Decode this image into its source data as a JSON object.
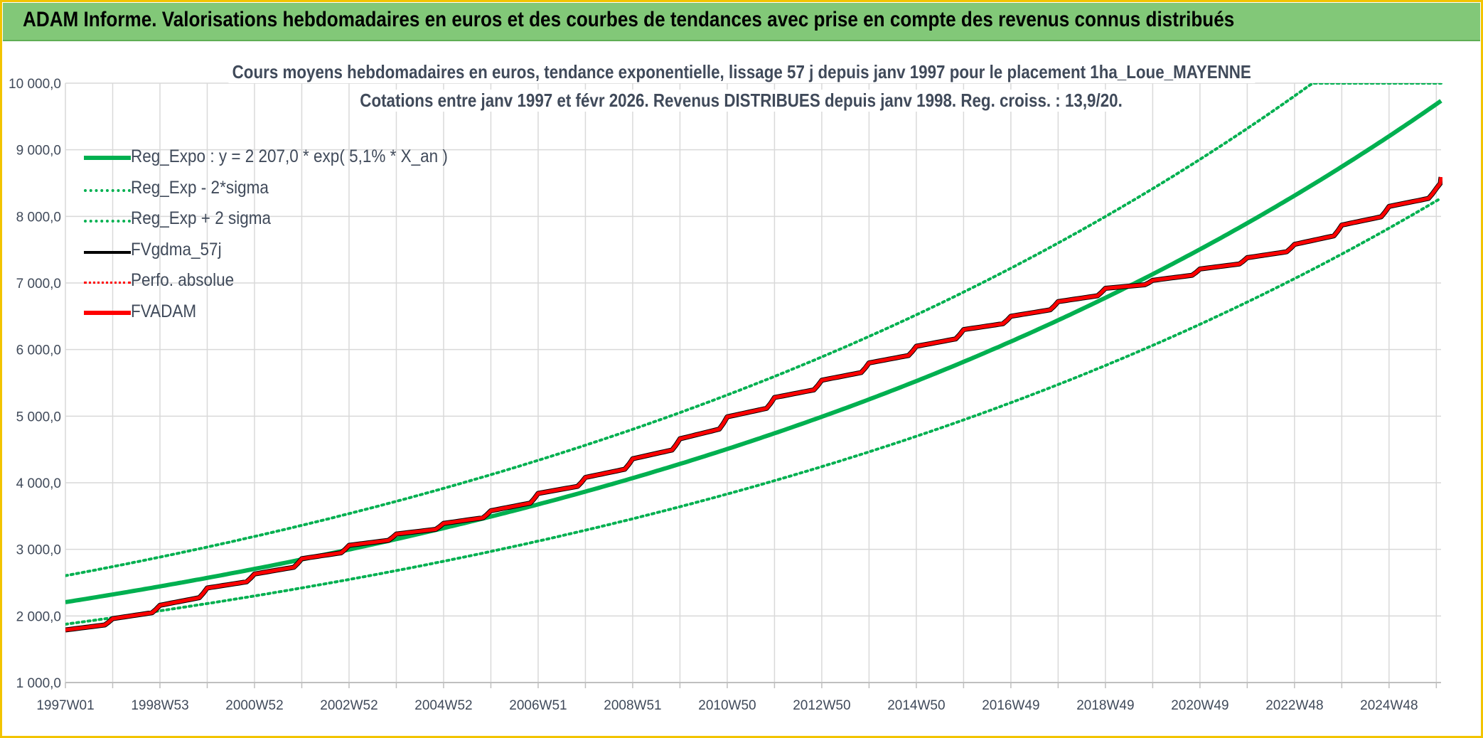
{
  "header": {
    "banner_title": "ADAM Informe. Valorisations hebdomadaires en euros et des courbes de tendances avec prise en compte des revenus connus distribués"
  },
  "chart_data": {
    "type": "line",
    "title": "Cours moyens hebdomadaires en euros, tendance exponentielle, lissage 57 j depuis janv 1997 pour le placement 1ha_Loue_MAYENNE",
    "subtitle": "Cotations entre janv 1997 et févr 2026. Revenus DISTRIBUES depuis janv 1998. Reg. croiss. : 13,9/20.",
    "xlabel": "",
    "ylabel": "",
    "x_range": [
      1997.0,
      2026.1
    ],
    "ylim": [
      1000,
      10000
    ],
    "y_ticks": [
      "1 000,0",
      "2 000,0",
      "3 000,0",
      "4 000,0",
      "5 000,0",
      "6 000,0",
      "7 000,0",
      "8 000,0",
      "9 000,0",
      "10 000,0"
    ],
    "x_ticks": [
      "1997W01",
      "1998W53",
      "2000W52",
      "2002W52",
      "2004W52",
      "2006W51",
      "2008W51",
      "2010W50",
      "2012W50",
      "2014W50",
      "2016W49",
      "2018W49",
      "2020W49",
      "2022W48",
      "2024W48"
    ],
    "x_tick_years": [
      1997.0,
      1999.0,
      2001.0,
      2003.0,
      2005.0,
      2007.0,
      2009.0,
      2011.0,
      2013.0,
      2015.0,
      2017.0,
      2019.0,
      2021.0,
      2023.0,
      2025.0
    ],
    "grid": true,
    "legend_position": "top-left",
    "regression": {
      "a": 2207.0,
      "rate": 0.051,
      "sigma_factor_low": 0.85,
      "sigma_factor_high": 1.18
    },
    "series": [
      {
        "name": "Reg_Expo : y = 2 207,0 * exp( 5,1% *  X_an )",
        "color": "#00b050",
        "style": "solid-thick"
      },
      {
        "name": "Reg_Exp - 2*sigma",
        "color": "#00b050",
        "style": "dotted"
      },
      {
        "name": "Reg_Exp + 2 sigma",
        "color": "#00b050",
        "style": "dotted"
      },
      {
        "name": "FVgdma_57j",
        "color": "#000000",
        "style": "solid"
      },
      {
        "name": "Perfo. absolue",
        "color": "#ff0000",
        "style": "dotted-thin"
      },
      {
        "name": "FVADAM",
        "color": "#ff0000",
        "style": "solid-thick",
        "x": [
          1997.0,
          1998.0,
          1999.0,
          2000.0,
          2001.0,
          2002.0,
          2003.0,
          2004.0,
          2005.0,
          2006.0,
          2007.0,
          2008.0,
          2009.0,
          2010.0,
          2011.0,
          2012.0,
          2013.0,
          2014.0,
          2015.0,
          2016.0,
          2017.0,
          2018.0,
          2019.0,
          2020.0,
          2021.0,
          2022.0,
          2023.0,
          2024.0,
          2025.0,
          2026.0,
          2026.1
        ],
        "y": [
          1790,
          1960,
          2160,
          2420,
          2630,
          2860,
          3060,
          3230,
          3390,
          3580,
          3840,
          4080,
          4360,
          4660,
          4990,
          5280,
          5540,
          5800,
          6050,
          6300,
          6500,
          6720,
          6920,
          7040,
          7210,
          7380,
          7580,
          7870,
          8150,
          8420,
          8590
        ]
      }
    ]
  }
}
